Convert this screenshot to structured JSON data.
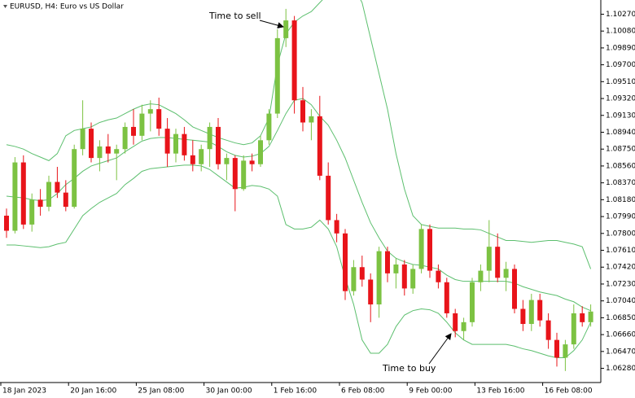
{
  "chart_data": {
    "type": "candlestick",
    "title": "EURUSD, H4:  Euro vs US Dollar",
    "annotations": [
      "Time to sell",
      "Time to buy"
    ],
    "categories": [
      "18 Jan 2023",
      null,
      null,
      null,
      null,
      null,
      null,
      null,
      "20 Jan 16:00",
      null,
      null,
      null,
      null,
      null,
      null,
      null,
      "25 Jan 08:00",
      null,
      null,
      null,
      null,
      null,
      null,
      null,
      "30 Jan 00:00",
      null,
      null,
      null,
      null,
      null,
      null,
      null,
      "1 Feb 16:00",
      null,
      null,
      null,
      null,
      null,
      null,
      null,
      "6 Feb 08:00",
      null,
      null,
      null,
      null,
      null,
      null,
      null,
      "9 Feb 00:00",
      null,
      null,
      null,
      null,
      null,
      null,
      null,
      "13 Feb 16:00",
      null,
      null,
      null,
      null,
      null,
      null,
      null,
      "16 Feb 08:00",
      null,
      null,
      null,
      null,
      null
    ],
    "open": [
      1.08,
      1.0783,
      1.086,
      1.079,
      1.0818,
      1.081,
      1.0838,
      1.0826,
      1.081,
      1.0875,
      1.0898,
      1.0865,
      1.0878,
      1.087,
      1.0875,
      1.09,
      1.089,
      1.0915,
      1.092,
      1.0898,
      1.087,
      1.0892,
      1.0868,
      1.0858,
      1.0875,
      1.09,
      1.0858,
      1.0865,
      1.083,
      1.0862,
      1.0858,
      1.0885,
      1.0915,
      1.1,
      1.102,
      1.093,
      1.0905,
      1.0912,
      1.0845,
      1.0795,
      1.078,
      1.0715,
      1.0742,
      1.0728,
      1.07,
      1.076,
      1.0735,
      1.0745,
      1.0718,
      1.074,
      1.0785,
      1.0738,
      1.0725,
      1.069,
      1.067,
      1.068,
      1.0725,
      1.0738,
      1.0765,
      1.073,
      1.074,
      1.0695,
      1.0678,
      1.0705,
      1.0682,
      1.066,
      1.064,
      1.0655,
      1.069,
      1.068
    ],
    "high": [
      1.0808,
      1.0866,
      1.0868,
      1.0825,
      1.083,
      1.0845,
      1.0855,
      1.084,
      1.088,
      1.093,
      1.0905,
      1.0885,
      1.0892,
      1.088,
      1.0905,
      1.092,
      1.0925,
      1.093,
      1.0933,
      1.091,
      1.0898,
      1.09,
      1.0885,
      1.088,
      1.0905,
      1.091,
      1.087,
      1.0868,
      1.0868,
      1.087,
      1.089,
      1.092,
      1.101,
      1.1033,
      1.1025,
      1.0945,
      1.092,
      1.0935,
      1.086,
      1.0802,
      1.0785,
      1.075,
      1.0755,
      1.0735,
      1.0765,
      1.0765,
      1.0752,
      1.075,
      1.0745,
      1.079,
      1.079,
      1.0745,
      1.073,
      1.0695,
      1.0685,
      1.073,
      1.0745,
      1.0795,
      1.078,
      1.0748,
      1.0745,
      1.0705,
      1.0712,
      1.0712,
      1.069,
      1.0668,
      1.066,
      1.07,
      1.0698,
      1.07
    ],
    "low": [
      1.0775,
      1.078,
      1.0785,
      1.0782,
      1.08,
      1.0805,
      1.082,
      1.0805,
      1.0808,
      1.0868,
      1.086,
      1.085,
      1.086,
      1.084,
      1.087,
      1.088,
      1.0885,
      1.0895,
      1.089,
      1.0855,
      1.086,
      1.0862,
      1.085,
      1.085,
      1.0855,
      1.0852,
      1.084,
      1.0805,
      1.0828,
      1.085,
      1.0855,
      1.088,
      1.091,
      1.099,
      1.0915,
      1.0895,
      1.0885,
      1.084,
      1.079,
      1.077,
      1.0705,
      1.071,
      1.072,
      1.068,
      1.0685,
      1.0725,
      1.0718,
      1.071,
      1.0712,
      1.0735,
      1.073,
      1.0718,
      1.0685,
      1.0663,
      1.066,
      1.0675,
      1.0715,
      1.0725,
      1.0725,
      1.0715,
      1.069,
      1.067,
      1.067,
      1.0675,
      1.065,
      1.063,
      1.0625,
      1.065,
      1.0675,
      1.0675
    ],
    "close": [
      1.0783,
      1.086,
      1.079,
      1.0818,
      1.081,
      1.0838,
      1.0826,
      1.081,
      1.0875,
      1.0898,
      1.0865,
      1.0878,
      1.087,
      1.0875,
      1.09,
      1.089,
      1.0915,
      1.092,
      1.0898,
      1.087,
      1.0892,
      1.0868,
      1.0858,
      1.0875,
      1.09,
      1.0858,
      1.0865,
      1.083,
      1.0862,
      1.0858,
      1.0885,
      1.0915,
      1.1,
      1.102,
      1.093,
      1.0905,
      1.0912,
      1.0845,
      1.0795,
      1.078,
      1.0715,
      1.0742,
      1.0728,
      1.07,
      1.076,
      1.0735,
      1.0745,
      1.0718,
      1.074,
      1.0785,
      1.0738,
      1.0725,
      1.069,
      1.067,
      1.068,
      1.0725,
      1.0738,
      1.0765,
      1.073,
      1.074,
      1.0695,
      1.0678,
      1.0705,
      1.0682,
      1.066,
      1.064,
      1.0655,
      1.069,
      1.068,
      1.0692
    ],
    "up_color": "#7cc242",
    "down_color": "#e8141a",
    "bands": {
      "color": "#5cbf6e",
      "upper": [
        1.088,
        1.0878,
        1.0875,
        1.087,
        1.0866,
        1.0862,
        1.087,
        1.089,
        1.0896,
        1.0898,
        1.09,
        1.0905,
        1.0908,
        1.091,
        1.0915,
        1.092,
        1.0924,
        1.0926,
        1.0925,
        1.092,
        1.0915,
        1.0908,
        1.09,
        1.0896,
        1.0892,
        1.0888,
        1.0885,
        1.0882,
        1.088,
        1.0882,
        1.089,
        1.091,
        1.097,
        1.1005,
        1.1018,
        1.1025,
        1.103,
        1.104,
        1.105,
        1.106,
        1.1065,
        1.1058,
        1.104,
        1.1,
        1.096,
        1.092,
        1.087,
        1.083,
        1.08,
        1.079,
        1.0788,
        1.0786,
        1.0786,
        1.0786,
        1.0785,
        1.0785,
        1.0784,
        1.078,
        1.0776,
        1.0772,
        1.0772,
        1.0771,
        1.077,
        1.0771,
        1.0772,
        1.0772,
        1.077,
        1.0768,
        1.0765,
        1.074
      ],
      "middle": [
        1.0822,
        1.0821,
        1.082,
        1.0818,
        1.0817,
        1.0818,
        1.0825,
        1.0835,
        1.0842,
        1.085,
        1.0856,
        1.0859,
        1.0862,
        1.0865,
        1.0872,
        1.0878,
        1.0884,
        1.0887,
        1.0888,
        1.0888,
        1.0887,
        1.0886,
        1.0885,
        1.0884,
        1.0883,
        1.0878,
        1.0872,
        1.0868,
        1.0866,
        1.0867,
        1.087,
        1.0878,
        1.0896,
        1.0915,
        1.093,
        1.0932,
        1.0925,
        1.0912,
        1.0902,
        1.0885,
        1.0865,
        1.084,
        1.0815,
        1.0792,
        1.0775,
        1.076,
        1.0752,
        1.0748,
        1.0745,
        1.0744,
        1.0742,
        1.074,
        1.0733,
        1.0728,
        1.0726,
        1.0726,
        1.0726,
        1.0726,
        1.0726,
        1.0726,
        1.0724,
        1.072,
        1.0717,
        1.0714,
        1.0712,
        1.071,
        1.0706,
        1.0703,
        1.0697,
        1.0693
      ],
      "lower": [
        1.0767,
        1.0767,
        1.0766,
        1.0765,
        1.0764,
        1.0765,
        1.0768,
        1.077,
        1.0785,
        1.08,
        1.0808,
        1.0815,
        1.082,
        1.0825,
        1.0835,
        1.0842,
        1.085,
        1.0853,
        1.0854,
        1.0855,
        1.0856,
        1.0857,
        1.0857,
        1.0856,
        1.0852,
        1.0845,
        1.0838,
        1.0831,
        1.0832,
        1.0834,
        1.0833,
        1.083,
        1.0822,
        1.079,
        1.0785,
        1.0785,
        1.0787,
        1.0795,
        1.0785,
        1.0765,
        1.073,
        1.07,
        1.066,
        1.0645,
        1.0645,
        1.0655,
        1.0675,
        1.0688,
        1.0693,
        1.0695,
        1.0694,
        1.069,
        1.068,
        1.0668,
        1.066,
        1.0655,
        1.0655,
        1.0655,
        1.0655,
        1.0655,
        1.0653,
        1.065,
        1.0648,
        1.0645,
        1.0642,
        1.064,
        1.064,
        1.0648,
        1.066,
        1.068
      ]
    },
    "ylim": [
      1.0612,
      1.1043
    ],
    "yticks": [
      {
        "value": 1.1027,
        "label": "1.10270"
      },
      {
        "value": 1.1008,
        "label": "1.10080"
      },
      {
        "value": 1.0989,
        "label": "1.09890"
      },
      {
        "value": 1.097,
        "label": "1.09700"
      },
      {
        "value": 1.0951,
        "label": "1.09510"
      },
      {
        "value": 1.0932,
        "label": "1.09320"
      },
      {
        "value": 1.0913,
        "label": "1.09130"
      },
      {
        "value": 1.0894,
        "label": "1.08940"
      },
      {
        "value": 1.0875,
        "label": "1.08750"
      },
      {
        "value": 1.0856,
        "label": "1.08560"
      },
      {
        "value": 1.0837,
        "label": "1.08370"
      },
      {
        "value": 1.0818,
        "label": "1.08180"
      },
      {
        "value": 1.0799,
        "label": "1.07990"
      },
      {
        "value": 1.078,
        "label": "1.07800"
      },
      {
        "value": 1.0761,
        "label": "1.07610"
      },
      {
        "value": 1.0742,
        "label": "1.07420"
      },
      {
        "value": 1.0723,
        "label": "1.07230"
      },
      {
        "value": 1.0704,
        "label": "1.07040"
      },
      {
        "value": 1.0685,
        "label": "1.06850"
      },
      {
        "value": 1.0666,
        "label": "1.06660"
      },
      {
        "value": 1.0647,
        "label": "1.06470"
      },
      {
        "value": 1.0628,
        "label": "1.06280"
      }
    ]
  }
}
